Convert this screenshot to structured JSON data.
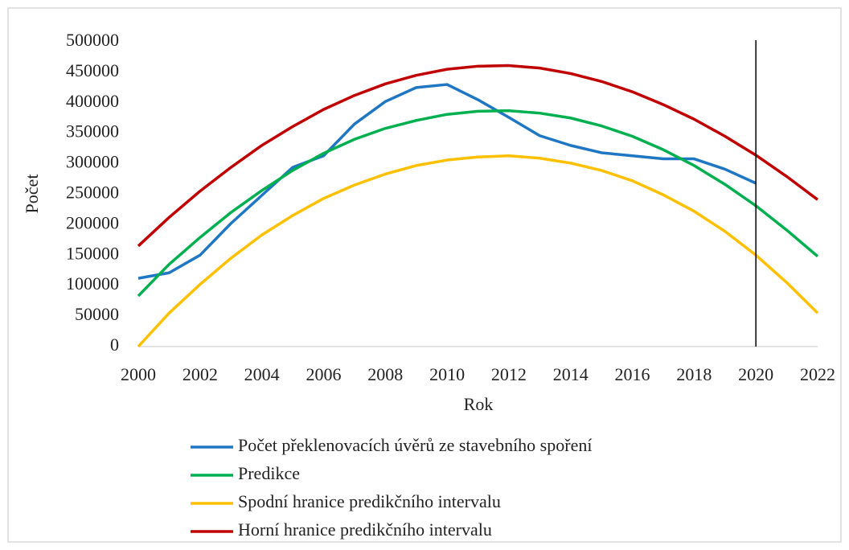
{
  "chart_data": {
    "type": "line",
    "x_label": "Rok",
    "y_label": "Počet",
    "x": [
      2000,
      2001,
      2002,
      2003,
      2004,
      2005,
      2006,
      2007,
      2008,
      2009,
      2010,
      2011,
      2012,
      2013,
      2014,
      2015,
      2016,
      2017,
      2018,
      2019,
      2020,
      2021,
      2022
    ],
    "xlim": [
      2000,
      2022
    ],
    "xticks": [
      2000,
      2002,
      2004,
      2006,
      2008,
      2010,
      2012,
      2014,
      2016,
      2018,
      2020,
      2022
    ],
    "ylim": [
      0,
      500000
    ],
    "yticks": [
      0,
      50000,
      100000,
      150000,
      200000,
      250000,
      300000,
      350000,
      400000,
      450000,
      500000
    ],
    "grid": false,
    "vertical_line_x": 2020,
    "series": [
      {
        "name": "Počet překlenovacích úvěrů ze stavebního spoření",
        "color": "#1f77c4",
        "values": [
          112000,
          121000,
          150000,
          202000,
          248000,
          294000,
          313000,
          365000,
          402000,
          425000,
          430000,
          405000,
          376000,
          346000,
          330000,
          318000,
          313000,
          308000,
          308000,
          291000,
          268000,
          null,
          null
        ]
      },
      {
        "name": "Predikce",
        "color": "#00b050",
        "values": [
          83000,
          135000,
          179000,
          220000,
          256000,
          289000,
          317000,
          340000,
          358000,
          371000,
          381000,
          386000,
          387000,
          383000,
          375000,
          362000,
          345000,
          323000,
          297000,
          266000,
          231000,
          191000,
          148000
        ]
      },
      {
        "name": "Spodní hranice predikčního intervalu",
        "color": "#ffc000",
        "values": [
          0,
          55000,
          102000,
          145000,
          183000,
          215000,
          243000,
          265000,
          283000,
          297000,
          306000,
          311000,
          313000,
          309000,
          301000,
          289000,
          272000,
          249000,
          222000,
          189000,
          150000,
          105000,
          55000
        ]
      },
      {
        "name": "Horní hranice predikčního intervalu",
        "color": "#c00000",
        "values": [
          165000,
          212000,
          255000,
          294000,
          330000,
          361000,
          389000,
          412000,
          431000,
          445000,
          455000,
          460000,
          461000,
          457000,
          448000,
          435000,
          418000,
          397000,
          373000,
          345000,
          314000,
          279000,
          241000
        ]
      }
    ]
  }
}
